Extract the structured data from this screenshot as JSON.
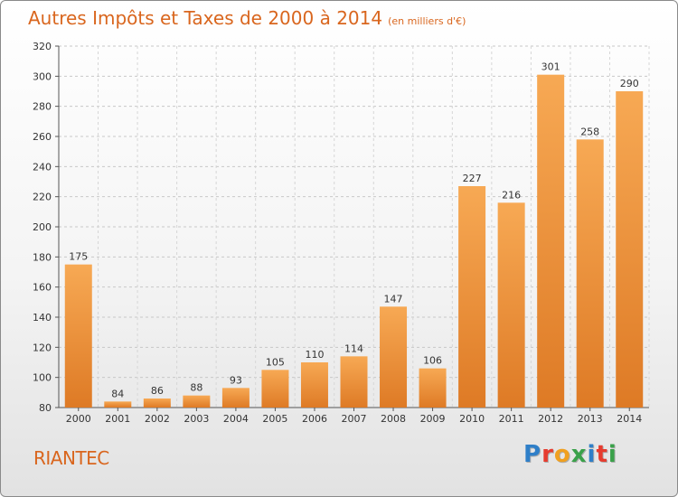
{
  "header": {
    "title": "Autres Impôts et Taxes de 2000 à 2014",
    "subtitle": "(en milliers d'€)"
  },
  "footer": {
    "town": "RIANTEC",
    "brand": "Proxiti",
    "brand_letters": [
      {
        "char": "P",
        "color": "#2f7fc8"
      },
      {
        "char": "r",
        "color": "#e63c2f"
      },
      {
        "char": "o",
        "color": "#f0a020"
      },
      {
        "char": "x",
        "color": "#3aa14a"
      },
      {
        "char": "i",
        "color": "#2f7fc8"
      },
      {
        "char": "t",
        "color": "#e63c2f"
      },
      {
        "char": "i",
        "color": "#3aa14a"
      }
    ]
  },
  "colors": {
    "accent": "#d9661e",
    "bar_light": "#f7a954",
    "bar_dark": "#de7a25"
  },
  "chart_data": {
    "type": "bar",
    "categories": [
      "2000",
      "2001",
      "2002",
      "2003",
      "2004",
      "2005",
      "2006",
      "2007",
      "2008",
      "2009",
      "2010",
      "2011",
      "2012",
      "2013",
      "2014"
    ],
    "values": [
      175,
      84,
      86,
      88,
      93,
      105,
      110,
      114,
      147,
      106,
      227,
      216,
      301,
      258,
      290
    ],
    "title": "Autres Impôts et Taxes de 2000 à 2014",
    "xlabel": "",
    "ylabel": "",
    "ylim": [
      80,
      320
    ],
    "yticks": [
      80,
      100,
      120,
      140,
      160,
      180,
      200,
      220,
      240,
      260,
      280,
      300,
      320
    ],
    "grid": true,
    "data_labels": true
  }
}
